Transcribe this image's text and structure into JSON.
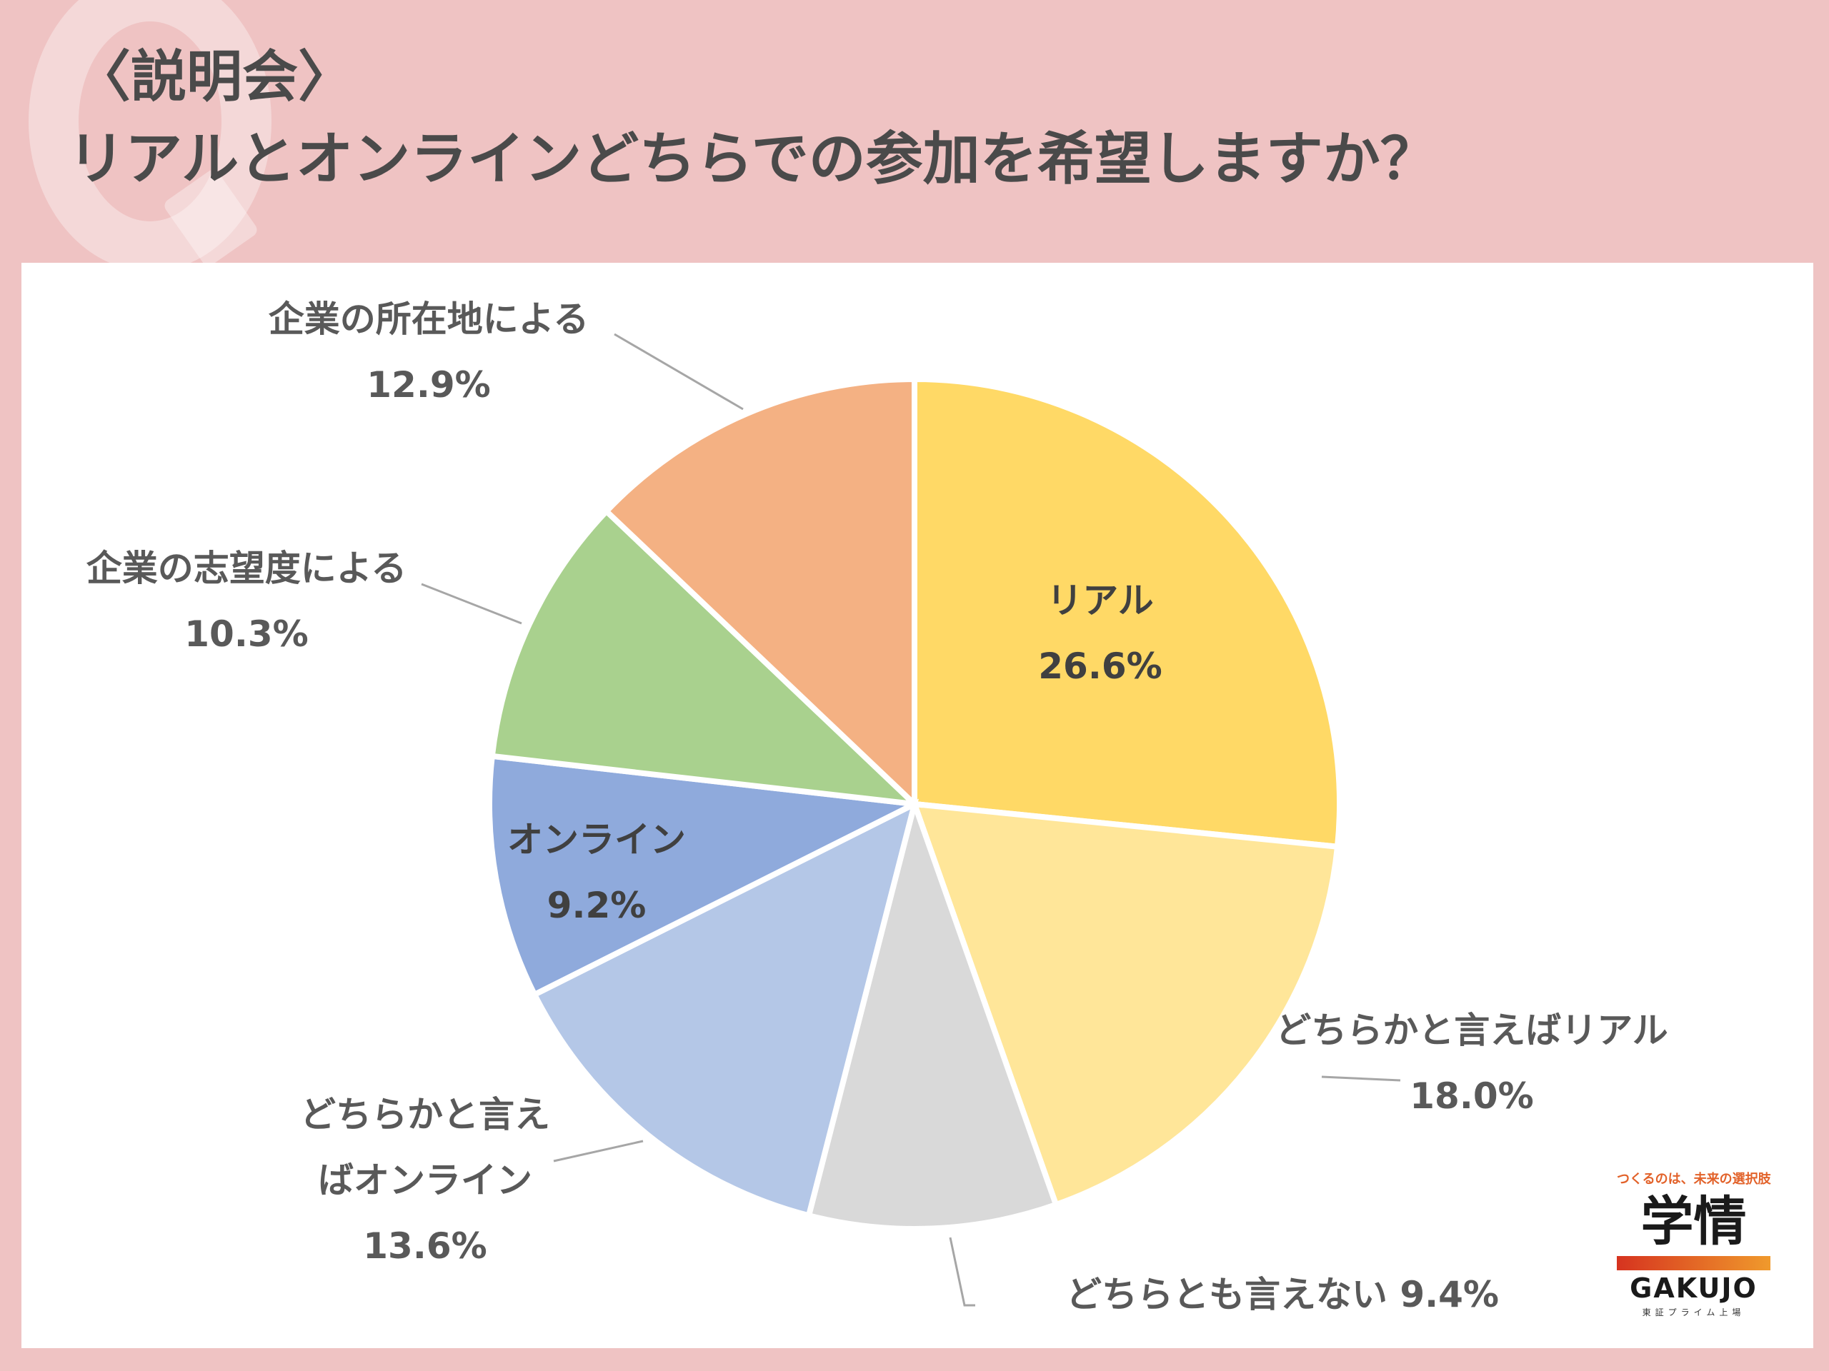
{
  "header": {
    "subtitle": "〈説明会〉",
    "title": "リアルとオンラインどちらでの参加を希望しますか？"
  },
  "chart_data": {
    "type": "pie",
    "title": "",
    "slices": [
      {
        "label": "リアル",
        "value": 26.6,
        "value_label": "26.6%",
        "color": "#ffd966"
      },
      {
        "label": "どちらかと言えばリアル",
        "value": 18.0,
        "value_label": "18.0%",
        "color": "#ffe699"
      },
      {
        "label": "どちらとも言えない",
        "value": 9.4,
        "value_label": "9.4%",
        "color": "#d9d9d9"
      },
      {
        "label": "どちらかと言えばオンライン",
        "value": 13.6,
        "value_label": "13.6%",
        "color": "#b4c7e7"
      },
      {
        "label": "オンライン",
        "value": 9.2,
        "value_label": "9.2%",
        "color": "#8faadc"
      },
      {
        "label": "企業の志望度による",
        "value": 10.3,
        "value_label": "10.3%",
        "color": "#a9d18e"
      },
      {
        "label": "企業の所在地による",
        "value": 12.9,
        "value_label": "12.9%",
        "color": "#f4b183"
      }
    ]
  },
  "logo": {
    "tagline": "つくるのは、未来の選択肢",
    "brand": "学情",
    "roman": "GAKUJO",
    "listed": "東証プライム上場"
  }
}
